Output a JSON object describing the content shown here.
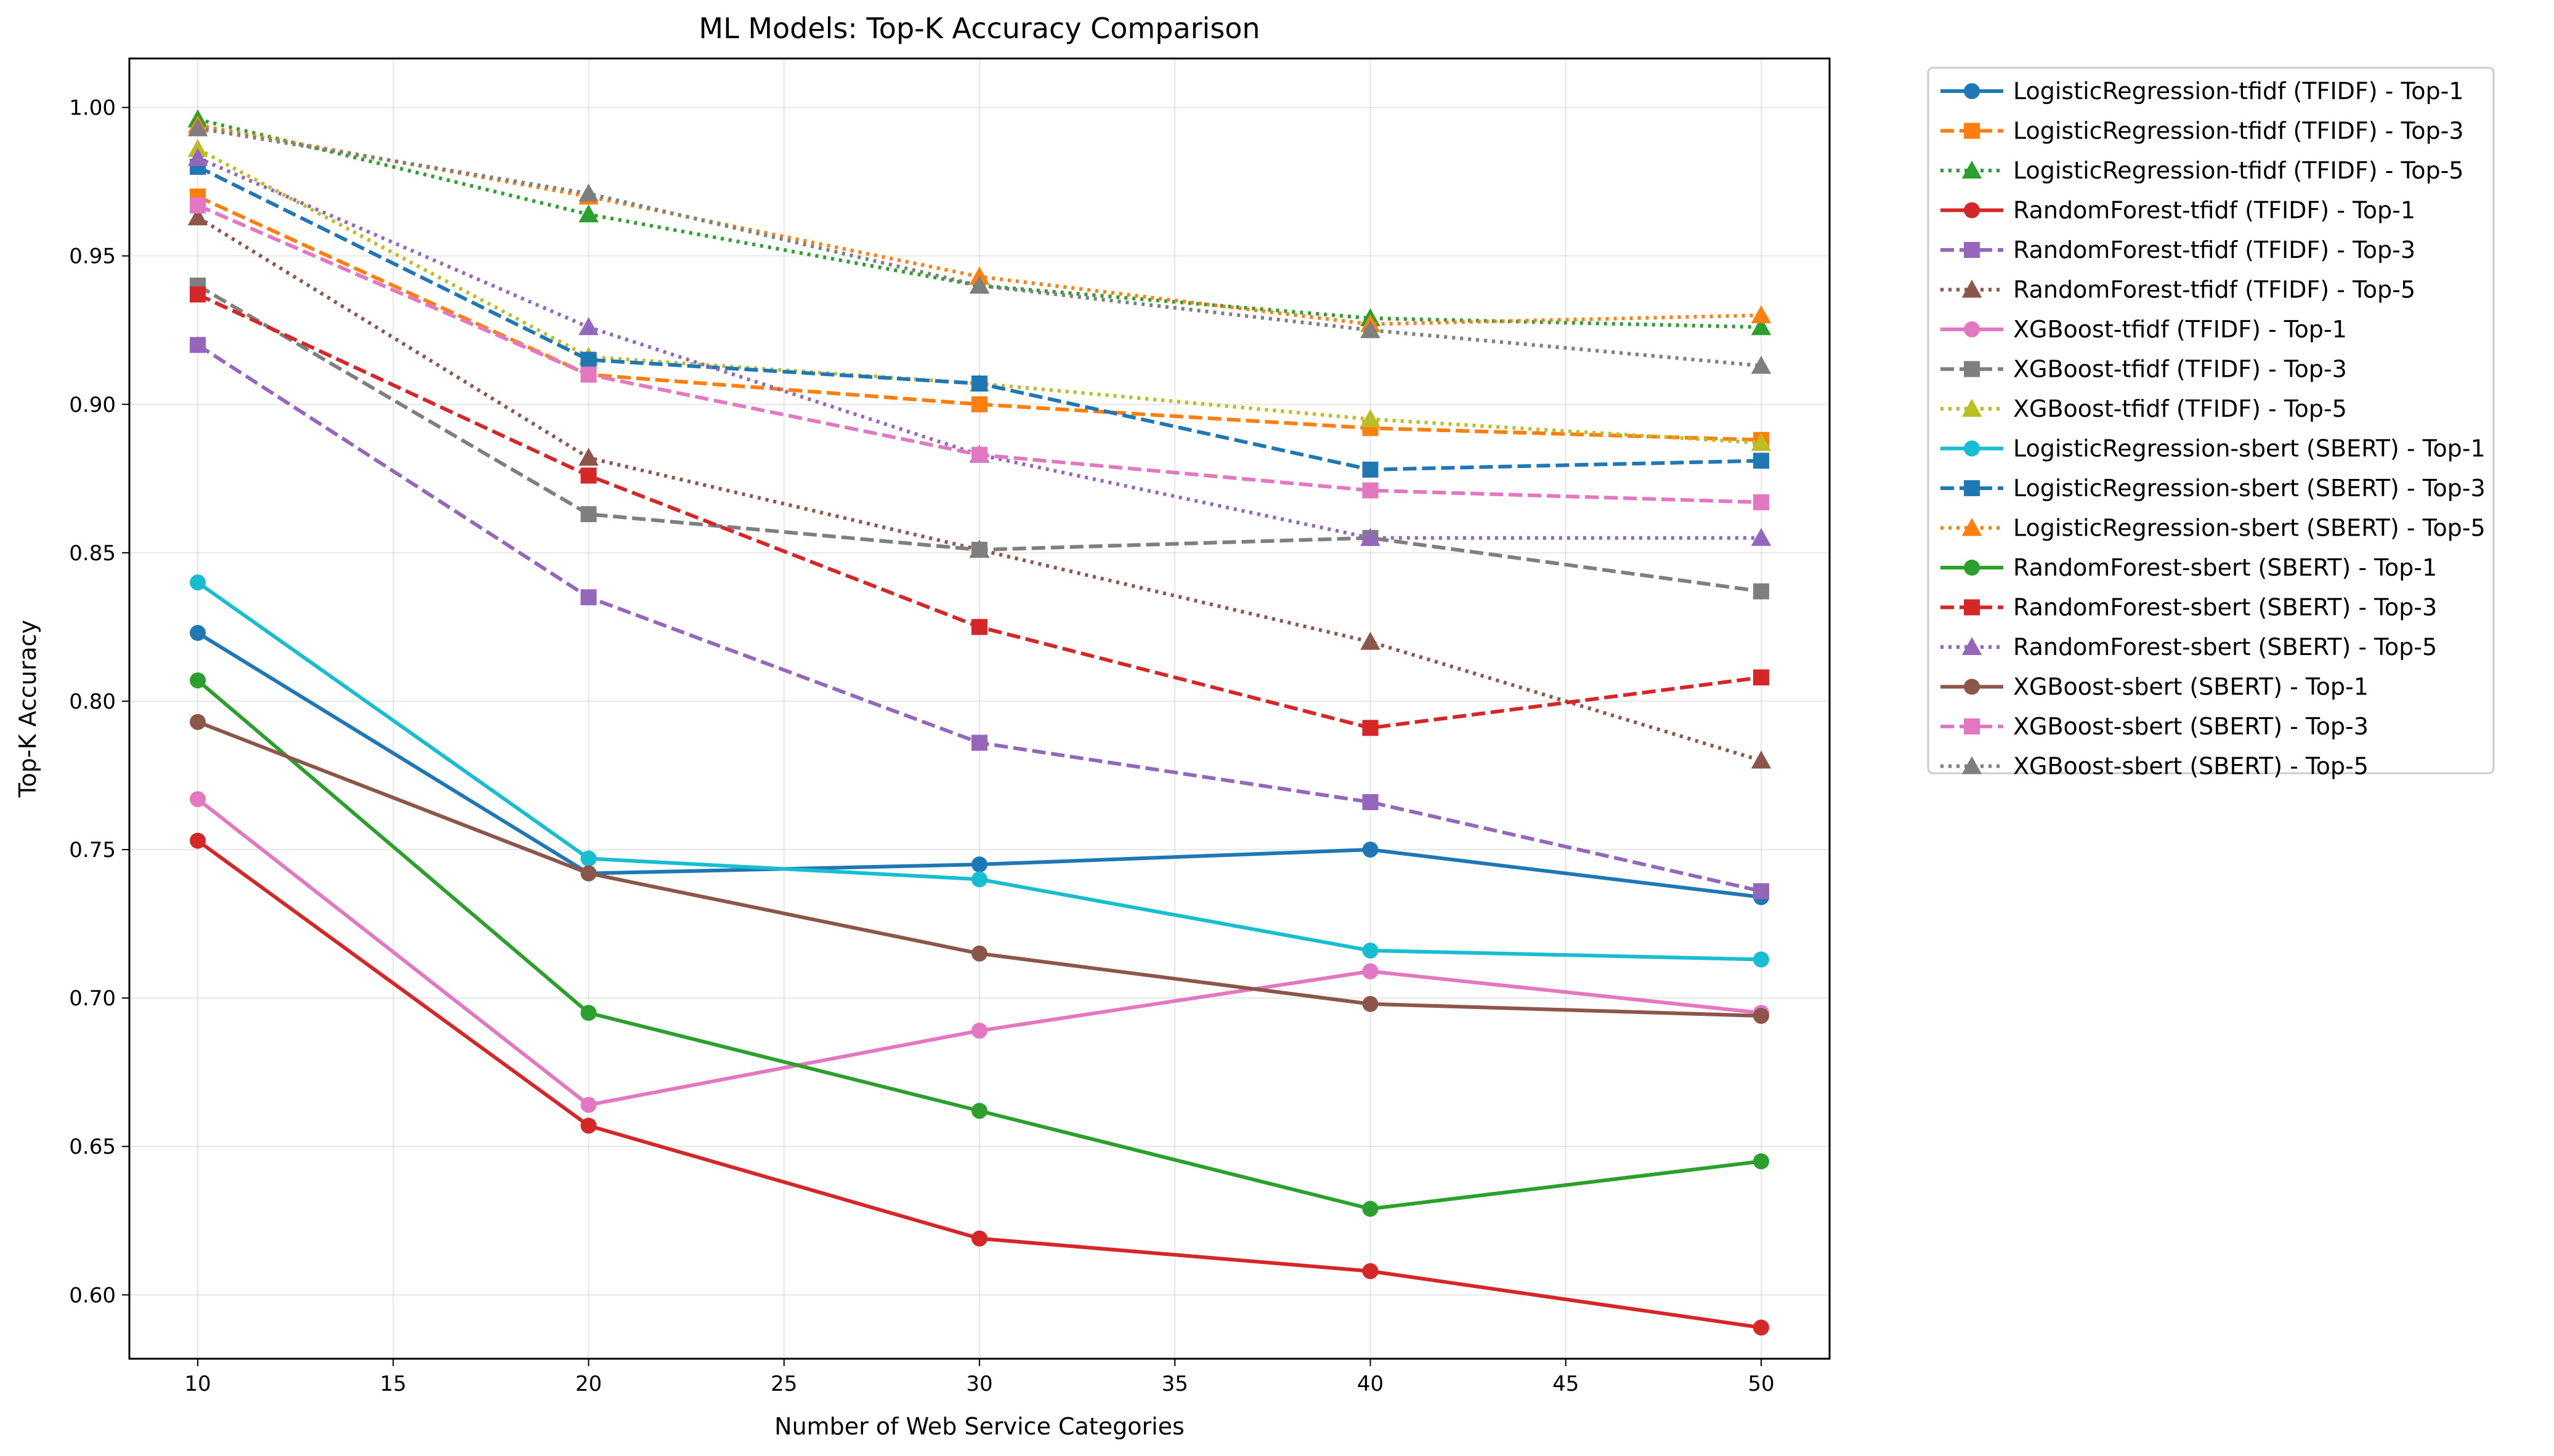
{
  "chart_data": {
    "type": "line",
    "title": "ML Models: Top-K Accuracy Comparison",
    "xlabel": "Number of Web Service Categories",
    "ylabel": "Top-K Accuracy",
    "x": [
      10,
      20,
      30,
      40,
      50
    ],
    "xlim": [
      8.25,
      51.75
    ],
    "ylim": [
      0.5785,
      1.0165
    ],
    "xticks": [
      "10",
      "15",
      "20",
      "25",
      "30",
      "35",
      "40",
      "45",
      "50"
    ],
    "yticks": [
      "0.60",
      "0.65",
      "0.70",
      "0.75",
      "0.80",
      "0.85",
      "0.90",
      "0.95",
      "1.00"
    ],
    "grid": true,
    "legend_position": "outside-top-right",
    "series": [
      {
        "name": "LogisticRegression-tfidf (TFIDF) - Top-1",
        "color": "#1f77b4",
        "dash": "solid",
        "marker": "circle",
        "values": [
          0.823,
          0.742,
          0.745,
          0.75,
          0.734
        ]
      },
      {
        "name": "LogisticRegression-tfidf (TFIDF) - Top-3",
        "color": "#ff7f0e",
        "dash": "dashed",
        "marker": "square",
        "values": [
          0.97,
          0.91,
          0.9,
          0.892,
          0.888
        ]
      },
      {
        "name": "LogisticRegression-tfidf (TFIDF) - Top-5",
        "color": "#2ca02c",
        "dash": "dotted",
        "marker": "triangle",
        "values": [
          0.996,
          0.964,
          0.94,
          0.929,
          0.926
        ]
      },
      {
        "name": "RandomForest-tfidf (TFIDF) - Top-1",
        "color": "#d62728",
        "dash": "solid",
        "marker": "circle",
        "values": [
          0.753,
          0.657,
          0.619,
          0.608,
          0.589
        ]
      },
      {
        "name": "RandomForest-tfidf (TFIDF) - Top-3",
        "color": "#9467bd",
        "dash": "dashed",
        "marker": "square",
        "values": [
          0.92,
          0.835,
          0.786,
          0.766,
          0.736
        ]
      },
      {
        "name": "RandomForest-tfidf (TFIDF) - Top-5",
        "color": "#8c564b",
        "dash": "dotted",
        "marker": "triangle",
        "values": [
          0.963,
          0.882,
          0.851,
          0.82,
          0.78
        ]
      },
      {
        "name": "XGBoost-tfidf (TFIDF) - Top-1",
        "color": "#e377c2",
        "dash": "solid",
        "marker": "circle",
        "values": [
          0.767,
          0.664,
          0.689,
          0.709,
          0.695
        ]
      },
      {
        "name": "XGBoost-tfidf (TFIDF) - Top-3",
        "color": "#7f7f7f",
        "dash": "dashed",
        "marker": "square",
        "values": [
          0.94,
          0.863,
          0.851,
          0.855,
          0.837
        ]
      },
      {
        "name": "XGBoost-tfidf (TFIDF) - Top-5",
        "color": "#bcbd22",
        "dash": "dotted",
        "marker": "triangle",
        "values": [
          0.986,
          0.916,
          0.907,
          0.895,
          0.887
        ]
      },
      {
        "name": "LogisticRegression-sbert (SBERT) - Top-1",
        "color": "#17becf",
        "dash": "solid",
        "marker": "circle",
        "values": [
          0.84,
          0.747,
          0.74,
          0.716,
          0.713
        ]
      },
      {
        "name": "LogisticRegression-sbert (SBERT) - Top-3",
        "color": "#1f77b4",
        "dash": "dashed",
        "marker": "square",
        "values": [
          0.98,
          0.915,
          0.907,
          0.878,
          0.881
        ]
      },
      {
        "name": "LogisticRegression-sbert (SBERT) - Top-5",
        "color": "#ff7f0e",
        "dash": "dotted",
        "marker": "triangle",
        "values": [
          0.994,
          0.97,
          0.943,
          0.927,
          0.93
        ]
      },
      {
        "name": "RandomForest-sbert (SBERT) - Top-1",
        "color": "#2ca02c",
        "dash": "solid",
        "marker": "circle",
        "values": [
          0.807,
          0.695,
          0.662,
          0.629,
          0.645
        ]
      },
      {
        "name": "RandomForest-sbert (SBERT) - Top-3",
        "color": "#d62728",
        "dash": "dashed",
        "marker": "square",
        "values": [
          0.937,
          0.876,
          0.825,
          0.791,
          0.808
        ]
      },
      {
        "name": "RandomForest-sbert (SBERT) - Top-5",
        "color": "#9467bd",
        "dash": "dotted",
        "marker": "triangle",
        "values": [
          0.983,
          0.926,
          0.883,
          0.855,
          0.855
        ]
      },
      {
        "name": "XGBoost-sbert (SBERT) - Top-1",
        "color": "#8c564b",
        "dash": "solid",
        "marker": "circle",
        "values": [
          0.793,
          0.742,
          0.715,
          0.698,
          0.694
        ]
      },
      {
        "name": "XGBoost-sbert (SBERT) - Top-3",
        "color": "#e377c2",
        "dash": "dashed",
        "marker": "square",
        "values": [
          0.967,
          0.91,
          0.883,
          0.871,
          0.867
        ]
      },
      {
        "name": "XGBoost-sbert (SBERT) - Top-5",
        "color": "#7f7f7f",
        "dash": "dotted",
        "marker": "triangle",
        "values": [
          0.993,
          0.971,
          0.94,
          0.925,
          0.913
        ]
      }
    ]
  }
}
